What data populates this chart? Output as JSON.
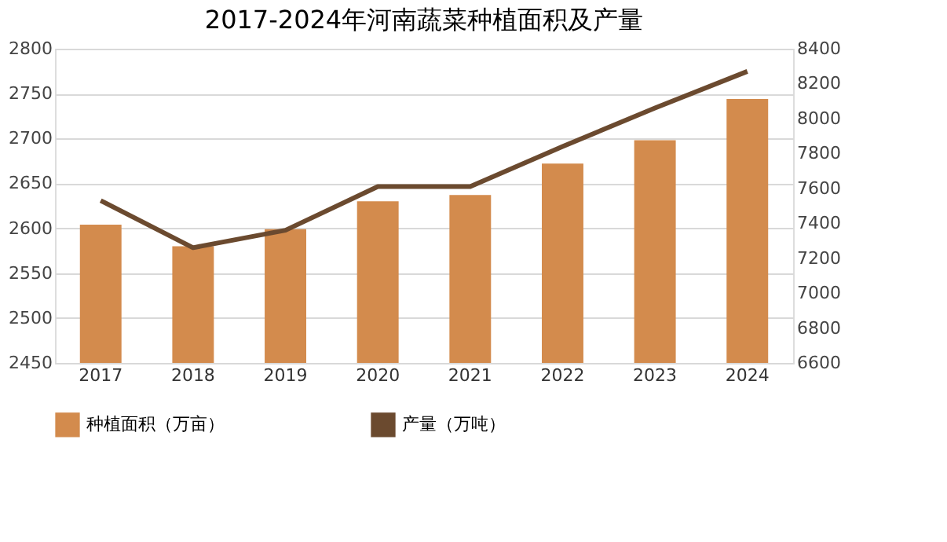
{
  "chart_data": {
    "type": "bar",
    "title": "2017-2024年河南蔬菜种植面积及产量",
    "categories": [
      "2017",
      "2018",
      "2019",
      "2020",
      "2021",
      "2022",
      "2023",
      "2024"
    ],
    "series": [
      {
        "name": "种植面积（万亩）",
        "color": "#d38b4d",
        "values": [
          2604,
          2580,
          2599,
          2630,
          2637,
          2672,
          2698,
          2744
        ]
      },
      {
        "name": "产量（万吨）",
        "type": "line",
        "axis": "y2",
        "color": "#6b4a2f",
        "values": [
          7530,
          7260,
          7360,
          7610,
          7610,
          7840,
          8060,
          8270
        ]
      }
    ],
    "ylim": [
      2450,
      2800
    ],
    "yticks": [
      2450,
      2500,
      2550,
      2600,
      2650,
      2700,
      2750,
      2800
    ],
    "y2lim": [
      6600,
      8400
    ],
    "y2ticks": [
      6600,
      6800,
      7000,
      7200,
      7400,
      7600,
      7800,
      8000,
      8200,
      8400
    ],
    "grid": "y",
    "legend": "bottom",
    "marker": "none",
    "line_style": "solid"
  }
}
